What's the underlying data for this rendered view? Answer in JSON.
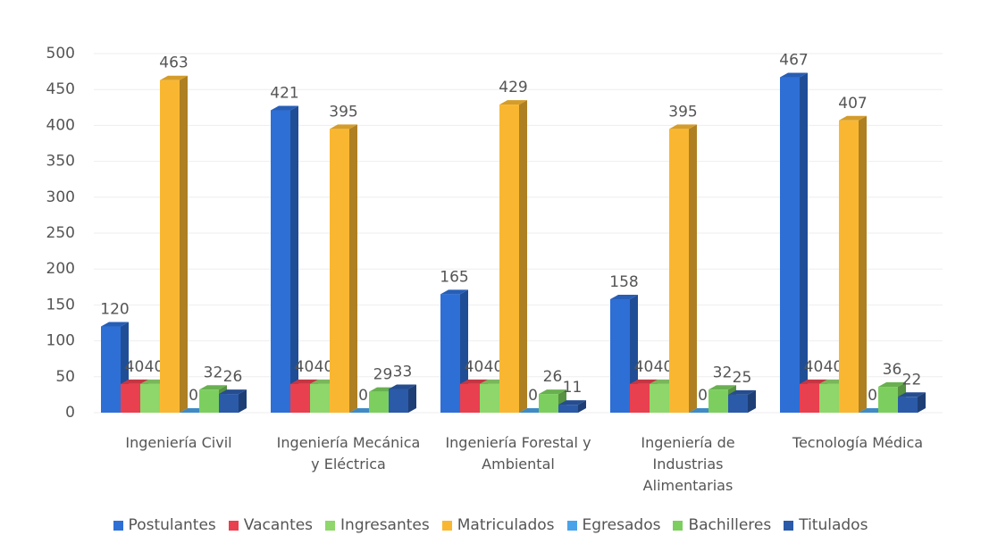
{
  "chart_data": {
    "type": "bar3d",
    "categories": [
      "Ingeniería Civil",
      "Ingeniería Mecánica y Eléctrica",
      "Ingeniería Forestal y Ambiental",
      "Ingeniería de Industrias Alimentarias",
      "Tecnología Médica"
    ],
    "series": [
      {
        "name": "Postulantes",
        "color": "#2e6fd6",
        "values": [
          120,
          421,
          165,
          158,
          467
        ]
      },
      {
        "name": "Vacantes",
        "color": "#e8404f",
        "values": [
          40,
          40,
          40,
          40,
          40
        ]
      },
      {
        "name": "Ingresantes",
        "color": "#8fd66b",
        "values": [
          40,
          40,
          40,
          40,
          40
        ]
      },
      {
        "name": "Matriculados",
        "color": "#f9b731",
        "values": [
          463,
          395,
          429,
          395,
          407
        ]
      },
      {
        "name": "Egresados",
        "color": "#4aa3e8",
        "values": [
          0,
          0,
          0,
          0,
          0
        ]
      },
      {
        "name": "Bachilleres",
        "color": "#7ccf5e",
        "values": [
          32,
          29,
          26,
          32,
          36
        ]
      },
      {
        "name": "Titulados",
        "color": "#2b5aa8",
        "values": [
          26,
          33,
          11,
          25,
          22
        ]
      }
    ],
    "ylim": [
      0,
      500
    ],
    "yticks": [
      0,
      50,
      100,
      150,
      200,
      250,
      300,
      350,
      400,
      450,
      500
    ],
    "grid": true,
    "legend": "bottom"
  }
}
